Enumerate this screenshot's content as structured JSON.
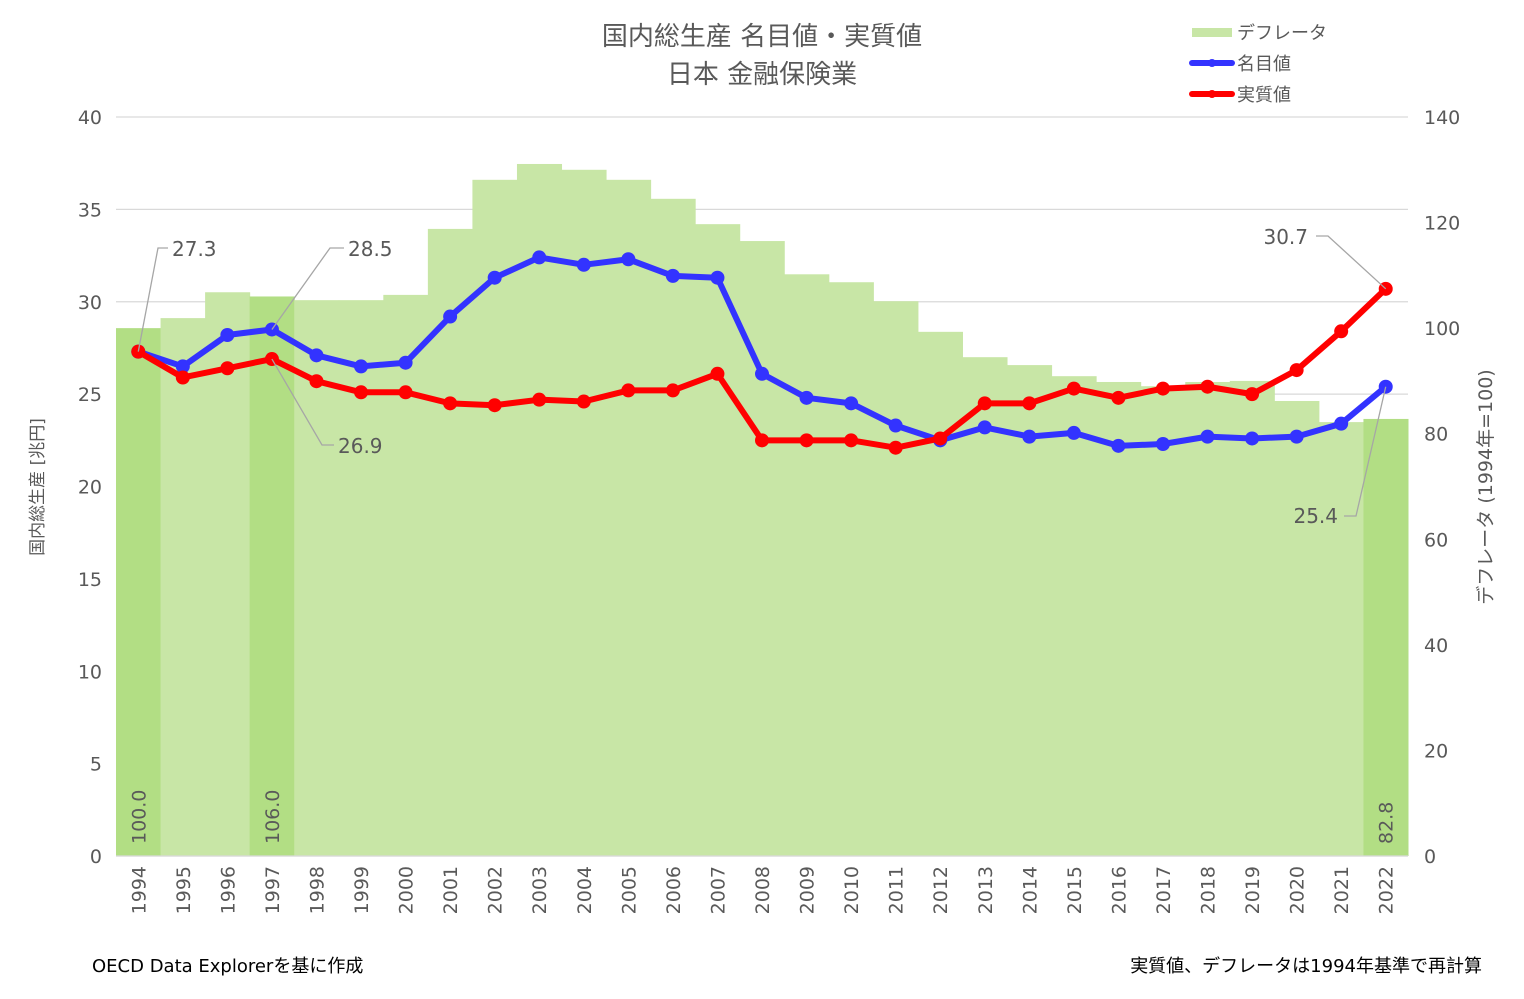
{
  "chart_data": {
    "type": "bar+line",
    "title": "国内総生産 名目値・実質値",
    "subtitle": "日本 金融保険業",
    "ylabel": "国内総生産 [兆円]",
    "y2label": "デフレータ (1994年=100)",
    "ylim": [
      0,
      40
    ],
    "yticks": [
      0,
      5,
      10,
      15,
      20,
      25,
      30,
      35,
      40
    ],
    "y2lim": [
      0,
      140
    ],
    "y2ticks": [
      0,
      20,
      40,
      60,
      80,
      100,
      120,
      140
    ],
    "grid": true,
    "legend_position": "top-right",
    "categories": [
      "1994",
      "1995",
      "1996",
      "1997",
      "1998",
      "1999",
      "2000",
      "2001",
      "2002",
      "2003",
      "2004",
      "2005",
      "2006",
      "2007",
      "2008",
      "2009",
      "2010",
      "2011",
      "2012",
      "2013",
      "2014",
      "2015",
      "2016",
      "2017",
      "2018",
      "2019",
      "2020",
      "2021",
      "2022"
    ],
    "series": [
      {
        "name": "デフレータ",
        "type": "bar",
        "axis": "right",
        "color": "#c8e6a6",
        "highlight_color": "#b2de84",
        "values": [
          100.0,
          101.9,
          106.8,
          106.0,
          105.3,
          105.3,
          106.3,
          118.8,
          128.1,
          131.1,
          130.0,
          128.1,
          124.5,
          119.7,
          116.5,
          110.2,
          108.7,
          105.1,
          99.3,
          94.5,
          93.0,
          90.9,
          89.8,
          89.0,
          89.8,
          90.0,
          86.2,
          82.2,
          82.8
        ],
        "data_labels": {
          "1994": "100.0",
          "1997": "106.0",
          "2022": "82.8"
        }
      },
      {
        "name": "名目値",
        "type": "line",
        "axis": "left",
        "color": "#3333ff",
        "values": [
          27.3,
          26.5,
          28.2,
          28.5,
          27.1,
          26.5,
          26.7,
          29.2,
          31.3,
          32.4,
          32.0,
          32.3,
          31.4,
          31.3,
          26.1,
          24.8,
          24.5,
          23.3,
          22.5,
          23.2,
          22.7,
          22.9,
          22.2,
          22.3,
          22.7,
          22.6,
          22.7,
          23.4,
          25.4
        ],
        "data_labels": {
          "1994": "27.3",
          "1997": "28.5",
          "2022": "25.4"
        }
      },
      {
        "name": "実質値",
        "type": "line",
        "axis": "left",
        "color": "#ff0000",
        "values": [
          27.3,
          25.9,
          26.4,
          26.9,
          25.7,
          25.1,
          25.1,
          24.5,
          24.4,
          24.7,
          24.6,
          25.2,
          25.2,
          26.1,
          22.5,
          22.5,
          22.5,
          22.1,
          22.6,
          24.5,
          24.5,
          25.3,
          24.8,
          25.3,
          25.4,
          25.0,
          26.3,
          28.4,
          30.7
        ],
        "data_labels": {
          "1997": "26.9",
          "2022": "30.7"
        }
      }
    ]
  },
  "footer": {
    "source": "OECD Data Explorerを基に作成",
    "note": "実質値、デフレータは1994年基準で再計算"
  }
}
